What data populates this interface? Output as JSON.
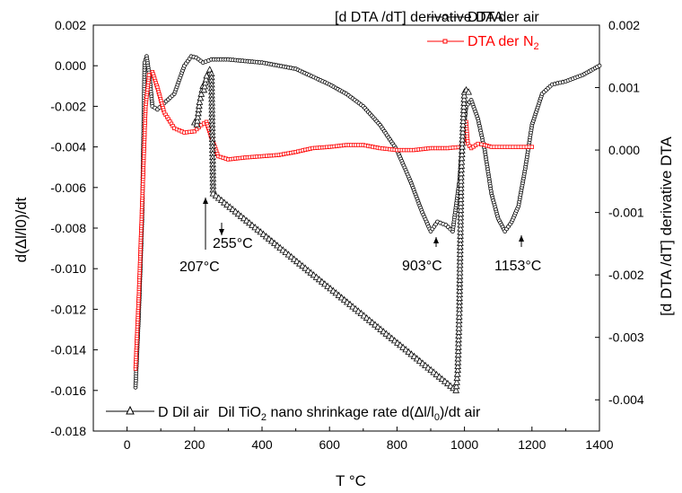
{
  "chart_data": {
    "type": "line",
    "xlabel": "T  °C",
    "ylabel_left": "d(Δl/l0)/dt",
    "ylabel_right": "[d DTA /dT] derivative DTA",
    "xlim": [
      -100,
      1400
    ],
    "ylim_left": [
      -0.018,
      0.002
    ],
    "ylim_right": [
      -0.0045,
      0.002
    ],
    "x_ticks": [
      "0",
      "200",
      "400",
      "600",
      "800",
      "1000",
      "1200",
      "1400"
    ],
    "y_left_ticks": [
      "0.002",
      "0.000",
      "-0.002",
      "-0.004",
      "-0.006",
      "-0.008",
      "-0.010",
      "-0.012",
      "-0.014",
      "-0.016",
      "-0.018"
    ],
    "y_right_ticks": [
      "0.002",
      "0.001",
      "0.000",
      "-0.001",
      "-0.002",
      "-0.003",
      "-0.004"
    ],
    "legend": {
      "top_title": "[d DTA /dT] derivative DTA",
      "entries": [
        {
          "label": "DTA der air",
          "color": "#000000",
          "marker": "circle"
        },
        {
          "label": "DTA der N",
          "sub": "2",
          "color": "#ff0000",
          "marker": "square"
        }
      ],
      "bottom_entry": {
        "marker_label": "D Dil air",
        "text": "Dil TiO",
        "sub1": "2",
        "text2": " nano shrinkage rate d(Δl/l",
        "sub2": "0",
        "text3": ")/dt air"
      }
    },
    "annotations": [
      {
        "label": "207°C",
        "x": 207
      },
      {
        "label": "255°C",
        "x": 255
      },
      {
        "label": "903°C",
        "x": 903
      },
      {
        "label": "1153°C",
        "x": 1153
      }
    ],
    "series": [
      {
        "name": "DTA der air",
        "axis": "right",
        "color": "#000000",
        "marker": "circle",
        "points": [
          [
            25,
            -0.0038
          ],
          [
            35,
            -0.0026
          ],
          [
            45,
            -0.001
          ],
          [
            52,
            0.0014
          ],
          [
            58,
            0.0015
          ],
          [
            66,
            0.0012
          ],
          [
            75,
            0.0007
          ],
          [
            90,
            0.00065
          ],
          [
            110,
            0.00075
          ],
          [
            140,
            0.0009
          ],
          [
            170,
            0.00135
          ],
          [
            190,
            0.0015
          ],
          [
            205,
            0.00148
          ],
          [
            225,
            0.0014
          ],
          [
            250,
            0.00145
          ],
          [
            300,
            0.00145
          ],
          [
            400,
            0.0014
          ],
          [
            500,
            0.0013
          ],
          [
            600,
            0.00105
          ],
          [
            650,
            0.0009
          ],
          [
            700,
            0.0007
          ],
          [
            750,
            0.0004
          ],
          [
            800,
            0.0
          ],
          [
            840,
            -0.0005
          ],
          [
            875,
            -0.001
          ],
          [
            900,
            -0.0013
          ],
          [
            920,
            -0.00115
          ],
          [
            945,
            -0.0012
          ],
          [
            965,
            -0.0013
          ],
          [
            985,
            -0.0005
          ],
          [
            995,
            0.0002
          ],
          [
            1005,
            0.0007
          ],
          [
            1020,
            0.0008
          ],
          [
            1040,
            0.0005
          ],
          [
            1060,
            0.0
          ],
          [
            1080,
            -0.0007
          ],
          [
            1100,
            -0.0011
          ],
          [
            1120,
            -0.0013
          ],
          [
            1140,
            -0.00115
          ],
          [
            1160,
            -0.0009
          ],
          [
            1180,
            -0.0003
          ],
          [
            1200,
            0.0004
          ],
          [
            1230,
            0.0009
          ],
          [
            1260,
            0.00105
          ],
          [
            1300,
            0.0011
          ],
          [
            1350,
            0.0012
          ],
          [
            1400,
            0.00135
          ]
        ]
      },
      {
        "name": "DTA der N2",
        "axis": "right",
        "color": "#ff0000",
        "marker": "square",
        "points": [
          [
            25,
            -0.0035
          ],
          [
            35,
            -0.0023
          ],
          [
            45,
            -0.0008
          ],
          [
            55,
            0.0007
          ],
          [
            65,
            0.0012
          ],
          [
            75,
            0.00125
          ],
          [
            90,
            0.001
          ],
          [
            110,
            0.0006
          ],
          [
            140,
            0.00035
          ],
          [
            170,
            0.00028
          ],
          [
            200,
            0.0003
          ],
          [
            220,
            0.0004
          ],
          [
            235,
            0.00045
          ],
          [
            250,
            0.0002
          ],
          [
            270,
            -0.0001
          ],
          [
            300,
            -0.00015
          ],
          [
            350,
            -0.00012
          ],
          [
            400,
            -0.0001
          ],
          [
            450,
            -8e-05
          ],
          [
            500,
            -3e-05
          ],
          [
            550,
            3e-05
          ],
          [
            600,
            5e-05
          ],
          [
            650,
            8e-05
          ],
          [
            700,
            8e-05
          ],
          [
            750,
            3e-05
          ],
          [
            800,
            0.0
          ],
          [
            850,
            0.0
          ],
          [
            900,
            3e-05
          ],
          [
            950,
            3e-05
          ],
          [
            990,
            5e-05
          ],
          [
            1000,
            0.0002
          ],
          [
            1005,
            0.00045
          ],
          [
            1010,
            0.0001
          ],
          [
            1020,
            3e-05
          ],
          [
            1040,
            0.0001
          ],
          [
            1060,
            8e-05
          ],
          [
            1080,
            5e-05
          ],
          [
            1120,
            5e-05
          ],
          [
            1160,
            5e-05
          ],
          [
            1200,
            5e-05
          ]
        ]
      },
      {
        "name": "D Dil air",
        "axis": "left",
        "color": "#000000",
        "marker": "triangle",
        "points": [
          [
            200,
            -0.0028
          ],
          [
            207,
            -0.0029
          ],
          [
            215,
            -0.0018
          ],
          [
            225,
            -0.001
          ],
          [
            228,
            -0.0012
          ],
          [
            236,
            -0.0005
          ],
          [
            245,
            -0.0002
          ],
          [
            250,
            -0.0004
          ],
          [
            255,
            -0.0063
          ],
          [
            975,
            -0.016
          ],
          [
            980,
            -0.015
          ],
          [
            985,
            -0.012
          ],
          [
            990,
            -0.0055
          ],
          [
            993,
            -0.004
          ],
          [
            1000,
            -0.0013
          ],
          [
            1005,
            -0.0012
          ],
          [
            1012,
            -0.0013
          ]
        ]
      }
    ]
  }
}
